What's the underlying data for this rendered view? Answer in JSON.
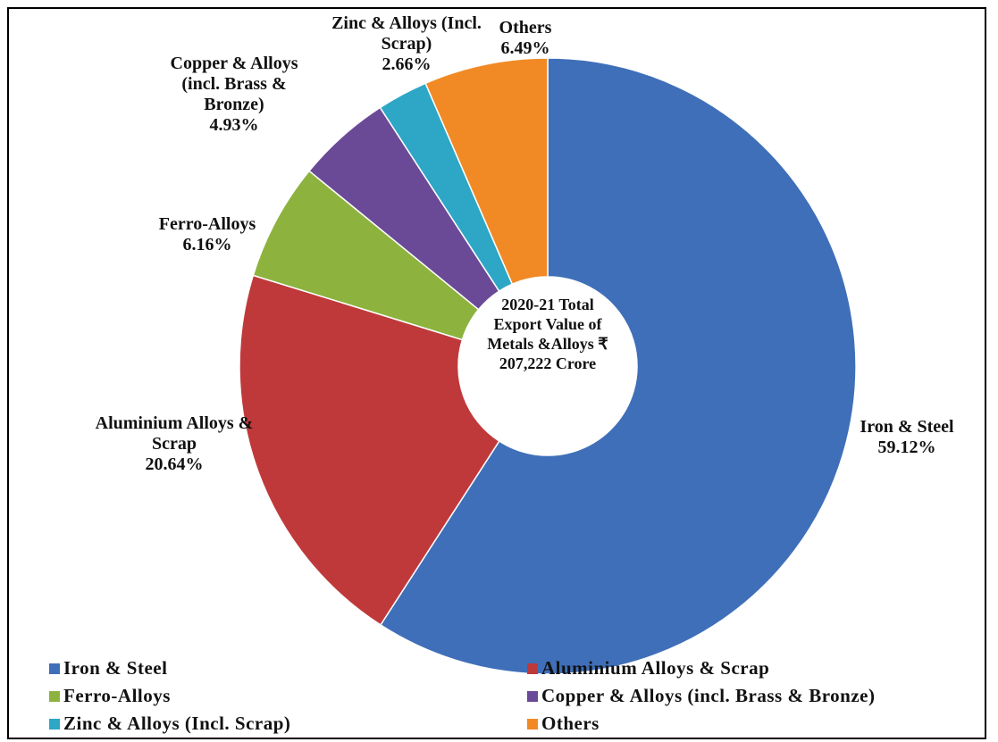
{
  "chart_data": {
    "type": "doughnut",
    "categories": [
      "Iron & Steel",
      "Aluminium Alloys & Scrap",
      "Ferro-Alloys",
      "Copper & Alloys (incl. Brass & Bronze)",
      "Zinc & Alloys (Incl. Scrap)",
      "Others"
    ],
    "values": [
      59.12,
      20.64,
      6.16,
      4.93,
      2.66,
      6.49
    ],
    "value_labels": [
      "59.12%",
      "20.64%",
      "6.16%",
      "4.93%",
      "2.66%",
      "6.49%"
    ],
    "colors": [
      "#3f6fb8",
      "#c0393a",
      "#8db33e",
      "#6a4a97",
      "#2ea6c6",
      "#f18a25"
    ],
    "label_names": [
      "Iron & Steel",
      "Aluminium Alloys & Scrap",
      "Ferro-Alloys",
      "Copper & Alloys (incl. Brass & Bronze)",
      "Zinc & Alloys (Incl. Scrap)",
      "Others"
    ],
    "center_text": "2020-21 Total Export Value of Metals &Alloys ₹ 207,222 Crore",
    "legend": true
  }
}
